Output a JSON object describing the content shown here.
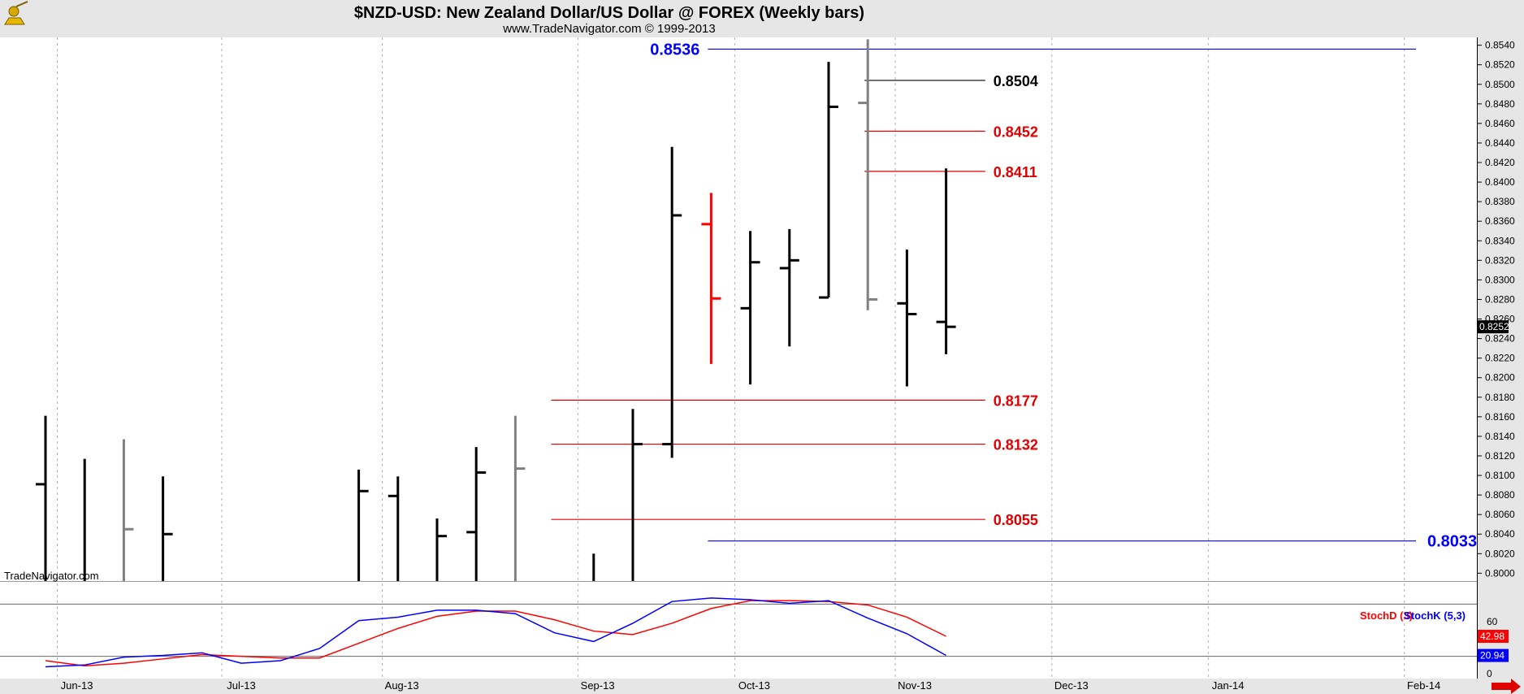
{
  "header": {
    "title": "$NZD-USD:  New Zealand Dollar/US Dollar @ FOREX  (Weekly bars)",
    "subtitle": "www.TradeNavigator.com © 1999-2013"
  },
  "watermark": "TradeNavigator.com",
  "colors": {
    "up": "#000000",
    "down": "#ff0000",
    "neutral": "#808080",
    "blue": "#0000ff",
    "red": "#e00000"
  },
  "chart_data": {
    "type": "ohlc",
    "price_axis": {
      "ylim": [
        0.7992,
        0.8548
      ],
      "ticks": [
        "0.8000",
        "0.8020",
        "0.8040",
        "0.8060",
        "0.8080",
        "0.8100",
        "0.8120",
        "0.8140",
        "0.8160",
        "0.8180",
        "0.8200",
        "0.8220",
        "0.8240",
        "0.8260",
        "0.8280",
        "0.8300",
        "0.8320",
        "0.8340",
        "0.8360",
        "0.8380",
        "0.8400",
        "0.8420",
        "0.8440",
        "0.8460",
        "0.8480",
        "0.8500",
        "0.8520",
        "0.8540"
      ],
      "last_price": "0.8252"
    },
    "x_labels": [
      {
        "label": "Jun-13",
        "week": 0.8
      },
      {
        "label": "Jul-13",
        "week": 5.0
      },
      {
        "label": "Aug-13",
        "week": 9.1
      },
      {
        "label": "Sep-13",
        "week": 14.1
      },
      {
        "label": "Oct-13",
        "week": 18.1
      },
      {
        "label": "Nov-13",
        "week": 22.2
      },
      {
        "label": "Dec-13",
        "week": 26.2
      },
      {
        "label": "Jan-14",
        "week": 30.2
      },
      {
        "label": "Feb-14",
        "week": 35.2
      }
    ],
    "bars": [
      {
        "week": 0,
        "open": 0.8091,
        "high": 0.8161,
        "low": 0.798,
        "close": 0.798,
        "color": "up"
      },
      {
        "week": 1,
        "open": 0.798,
        "high": 0.8117,
        "low": 0.798,
        "close": 0.798,
        "color": "up"
      },
      {
        "week": 2,
        "open": 0.798,
        "high": 0.8137,
        "low": 0.798,
        "close": 0.8045,
        "color": "neutral"
      },
      {
        "week": 3,
        "open": 0.798,
        "high": 0.8099,
        "low": 0.798,
        "close": 0.804,
        "color": "up"
      },
      {
        "week": 8,
        "open": 0.798,
        "high": 0.8106,
        "low": 0.798,
        "close": 0.8084,
        "color": "up"
      },
      {
        "week": 9,
        "open": 0.8079,
        "high": 0.8099,
        "low": 0.798,
        "close": 0.798,
        "color": "up"
      },
      {
        "week": 10,
        "open": 0.798,
        "high": 0.8056,
        "low": 0.798,
        "close": 0.8038,
        "color": "up"
      },
      {
        "week": 11,
        "open": 0.8042,
        "high": 0.8129,
        "low": 0.798,
        "close": 0.8103,
        "color": "up"
      },
      {
        "week": 12,
        "open": 0.798,
        "high": 0.8161,
        "low": 0.798,
        "close": 0.8107,
        "color": "neutral"
      },
      {
        "week": 14,
        "open": 0.798,
        "high": 0.802,
        "low": 0.798,
        "close": 0.798,
        "color": "up"
      },
      {
        "week": 15,
        "open": 0.798,
        "high": 0.8168,
        "low": 0.798,
        "close": 0.8132,
        "color": "up"
      },
      {
        "week": 16,
        "open": 0.8132,
        "high": 0.8436,
        "low": 0.8118,
        "close": 0.8366,
        "color": "up"
      },
      {
        "week": 17,
        "open": 0.8357,
        "high": 0.8389,
        "low": 0.8214,
        "close": 0.8281,
        "color": "down"
      },
      {
        "week": 18,
        "open": 0.8271,
        "high": 0.835,
        "low": 0.8193,
        "close": 0.8318,
        "color": "up"
      },
      {
        "week": 19,
        "open": 0.8312,
        "high": 0.8352,
        "low": 0.8232,
        "close": 0.832,
        "color": "up"
      },
      {
        "week": 20,
        "open": 0.8282,
        "high": 0.8523,
        "low": 0.8282,
        "close": 0.8477,
        "color": "up"
      },
      {
        "week": 21,
        "open": 0.8481,
        "high": 0.8546,
        "low": 0.8269,
        "close": 0.828,
        "color": "neutral"
      },
      {
        "week": 22,
        "open": 0.8276,
        "high": 0.8331,
        "low": 0.8191,
        "close": 0.8265,
        "color": "up"
      },
      {
        "week": 23,
        "open": 0.8257,
        "high": 0.8414,
        "low": 0.8224,
        "close": 0.8252,
        "color": "up"
      }
    ],
    "levels": [
      {
        "value": 0.8536,
        "label": "0.8536",
        "color": "blue",
        "from_week": 17,
        "to_week": 35.0,
        "label_side": "left"
      },
      {
        "value": 0.8504,
        "label": "0.8504",
        "color": "up",
        "from_week": 21,
        "to_week": 24.0,
        "label_side": "right"
      },
      {
        "value": 0.8452,
        "label": "0.8452",
        "color": "red",
        "from_week": 21,
        "to_week": 24.0,
        "label_side": "right"
      },
      {
        "value": 0.8411,
        "label": "0.8411",
        "color": "red",
        "from_week": 21,
        "to_week": 24.0,
        "label_side": "right"
      },
      {
        "value": 0.8177,
        "label": "0.8177",
        "color": "red",
        "from_week": 13,
        "to_week": 24.0,
        "label_side": "right"
      },
      {
        "value": 0.8132,
        "label": "0.8132",
        "color": "red",
        "from_week": 13,
        "to_week": 24.0,
        "label_side": "right"
      },
      {
        "value": 0.8055,
        "label": "0.8055",
        "color": "red",
        "from_week": 13,
        "to_week": 24.0,
        "label_side": "right"
      },
      {
        "value": 0.8033,
        "label": "0.8033",
        "color": "blue",
        "from_week": 17,
        "to_week": 35.0,
        "label_side": "right"
      }
    ],
    "stochastic": {
      "legend_d": "StochD (3)",
      "legend_k": "StochK (5,3)",
      "ylim": [
        0,
        100
      ],
      "tick_labels": [
        {
          "value": 60,
          "label": "60"
        },
        {
          "value": 0,
          "label": "0"
        }
      ],
      "ref_lines": [
        80,
        20
      ],
      "last_d": "42.98",
      "last_k": "20.94",
      "stochD": [
        {
          "week": 0,
          "value": 15
        },
        {
          "week": 1,
          "value": 9
        },
        {
          "week": 2,
          "value": 12
        },
        {
          "week": 3,
          "value": 17
        },
        {
          "week": 4,
          "value": 22
        },
        {
          "week": 5,
          "value": 20
        },
        {
          "week": 6,
          "value": 18
        },
        {
          "week": 7,
          "value": 18
        },
        {
          "week": 8,
          "value": 35
        },
        {
          "week": 9,
          "value": 52
        },
        {
          "week": 10,
          "value": 66
        },
        {
          "week": 11,
          "value": 72
        },
        {
          "week": 12,
          "value": 72
        },
        {
          "week": 13,
          "value": 62
        },
        {
          "week": 14,
          "value": 49
        },
        {
          "week": 15,
          "value": 45
        },
        {
          "week": 16,
          "value": 58
        },
        {
          "week": 17,
          "value": 75
        },
        {
          "week": 18,
          "value": 84
        },
        {
          "week": 19,
          "value": 84
        },
        {
          "week": 20,
          "value": 83
        },
        {
          "week": 21,
          "value": 79
        },
        {
          "week": 22,
          "value": 65
        },
        {
          "week": 23,
          "value": 43
        }
      ],
      "stochK": [
        {
          "week": 0,
          "value": 8
        },
        {
          "week": 1,
          "value": 10
        },
        {
          "week": 2,
          "value": 19
        },
        {
          "week": 3,
          "value": 21
        },
        {
          "week": 4,
          "value": 24
        },
        {
          "week": 5,
          "value": 12
        },
        {
          "week": 6,
          "value": 15
        },
        {
          "week": 7,
          "value": 29
        },
        {
          "week": 8,
          "value": 61
        },
        {
          "week": 9,
          "value": 65
        },
        {
          "week": 10,
          "value": 73
        },
        {
          "week": 11,
          "value": 73
        },
        {
          "week": 12,
          "value": 69
        },
        {
          "week": 13,
          "value": 47
        },
        {
          "week": 14,
          "value": 37
        },
        {
          "week": 15,
          "value": 58
        },
        {
          "week": 16,
          "value": 83
        },
        {
          "week": 17,
          "value": 87
        },
        {
          "week": 18,
          "value": 85
        },
        {
          "week": 19,
          "value": 81
        },
        {
          "week": 20,
          "value": 84
        },
        {
          "week": 21,
          "value": 64
        },
        {
          "week": 22,
          "value": 46
        },
        {
          "week": 23,
          "value": 21
        }
      ]
    }
  }
}
